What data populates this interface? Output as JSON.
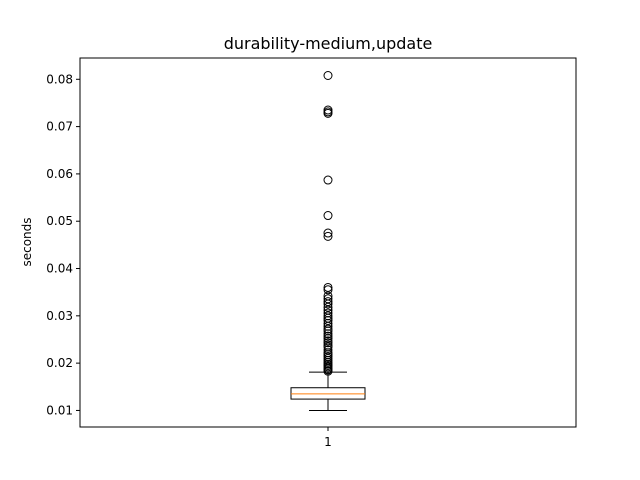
{
  "chart_data": {
    "type": "box",
    "title": "durability-medium,update",
    "xlabel": "",
    "ylabel": "seconds",
    "categories": [
      "1"
    ],
    "ylim": [
      0.0065,
      0.0845
    ],
    "yticks": [
      "0.01",
      "0.02",
      "0.03",
      "0.04",
      "0.05",
      "0.06",
      "0.07",
      "0.08"
    ],
    "box": {
      "whisker_low": 0.01,
      "q1": 0.0124,
      "median": 0.0135,
      "q3": 0.0148,
      "whisker_high": 0.0181
    },
    "outliers": [
      0.0808,
      0.0735,
      0.0731,
      0.0728,
      0.0587,
      0.0512,
      0.0475,
      0.0468,
      0.036,
      0.0355,
      0.0342,
      0.0336,
      0.033,
      0.0325,
      0.0318,
      0.0312,
      0.0306,
      0.03,
      0.0295,
      0.029,
      0.0284,
      0.0278,
      0.0272,
      0.0268,
      0.0262,
      0.0257,
      0.0252,
      0.0247,
      0.0243,
      0.0238,
      0.0234,
      0.0228,
      0.0222,
      0.0218,
      0.0214,
      0.021,
      0.0206,
      0.0202,
      0.0198,
      0.0195,
      0.0192,
      0.0189,
      0.0186,
      0.0183
    ],
    "colors": {
      "median": "#ff7f0e",
      "box": "#000000",
      "outlier": "#000000"
    },
    "grid": false
  }
}
